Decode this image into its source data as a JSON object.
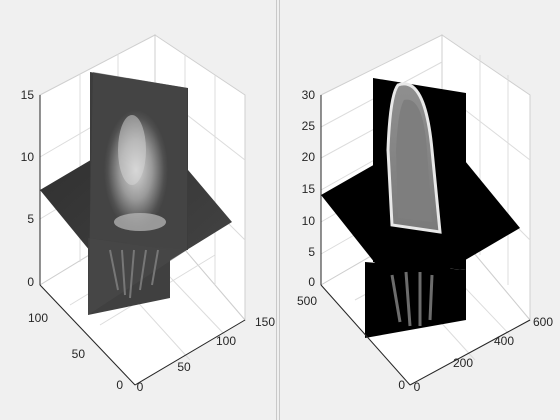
{
  "chart_data": [
    {
      "type": "volume-slice",
      "subplot": "left",
      "grid": true,
      "colormap": "gray",
      "x_ticks": [
        "0",
        "50",
        "100",
        "150"
      ],
      "y_ticks": [
        "0",
        "50",
        "100"
      ],
      "z_ticks": [
        "0",
        "5",
        "10",
        "15"
      ],
      "xlim": [
        0,
        160
      ],
      "ylim": [
        0,
        130
      ],
      "zlim": [
        0,
        15
      ],
      "slices": [
        {
          "orientation": "x",
          "position": 80
        },
        {
          "orientation": "y",
          "position": 65
        },
        {
          "orientation": "z",
          "position": 7.5
        }
      ]
    },
    {
      "type": "volume-slice",
      "subplot": "right",
      "grid": true,
      "colormap": "gray",
      "x_ticks": [
        "0",
        "200",
        "400",
        "600"
      ],
      "y_ticks": [
        "0",
        "500"
      ],
      "z_ticks": [
        "0",
        "5",
        "10",
        "15",
        "20",
        "25",
        "30"
      ],
      "xlim": [
        0,
        620
      ],
      "ylim": [
        0,
        560
      ],
      "zlim": [
        0,
        30
      ],
      "slices": [
        {
          "orientation": "x",
          "position": 310
        },
        {
          "orientation": "y",
          "position": 280
        },
        {
          "orientation": "z",
          "position": 15
        }
      ]
    }
  ]
}
